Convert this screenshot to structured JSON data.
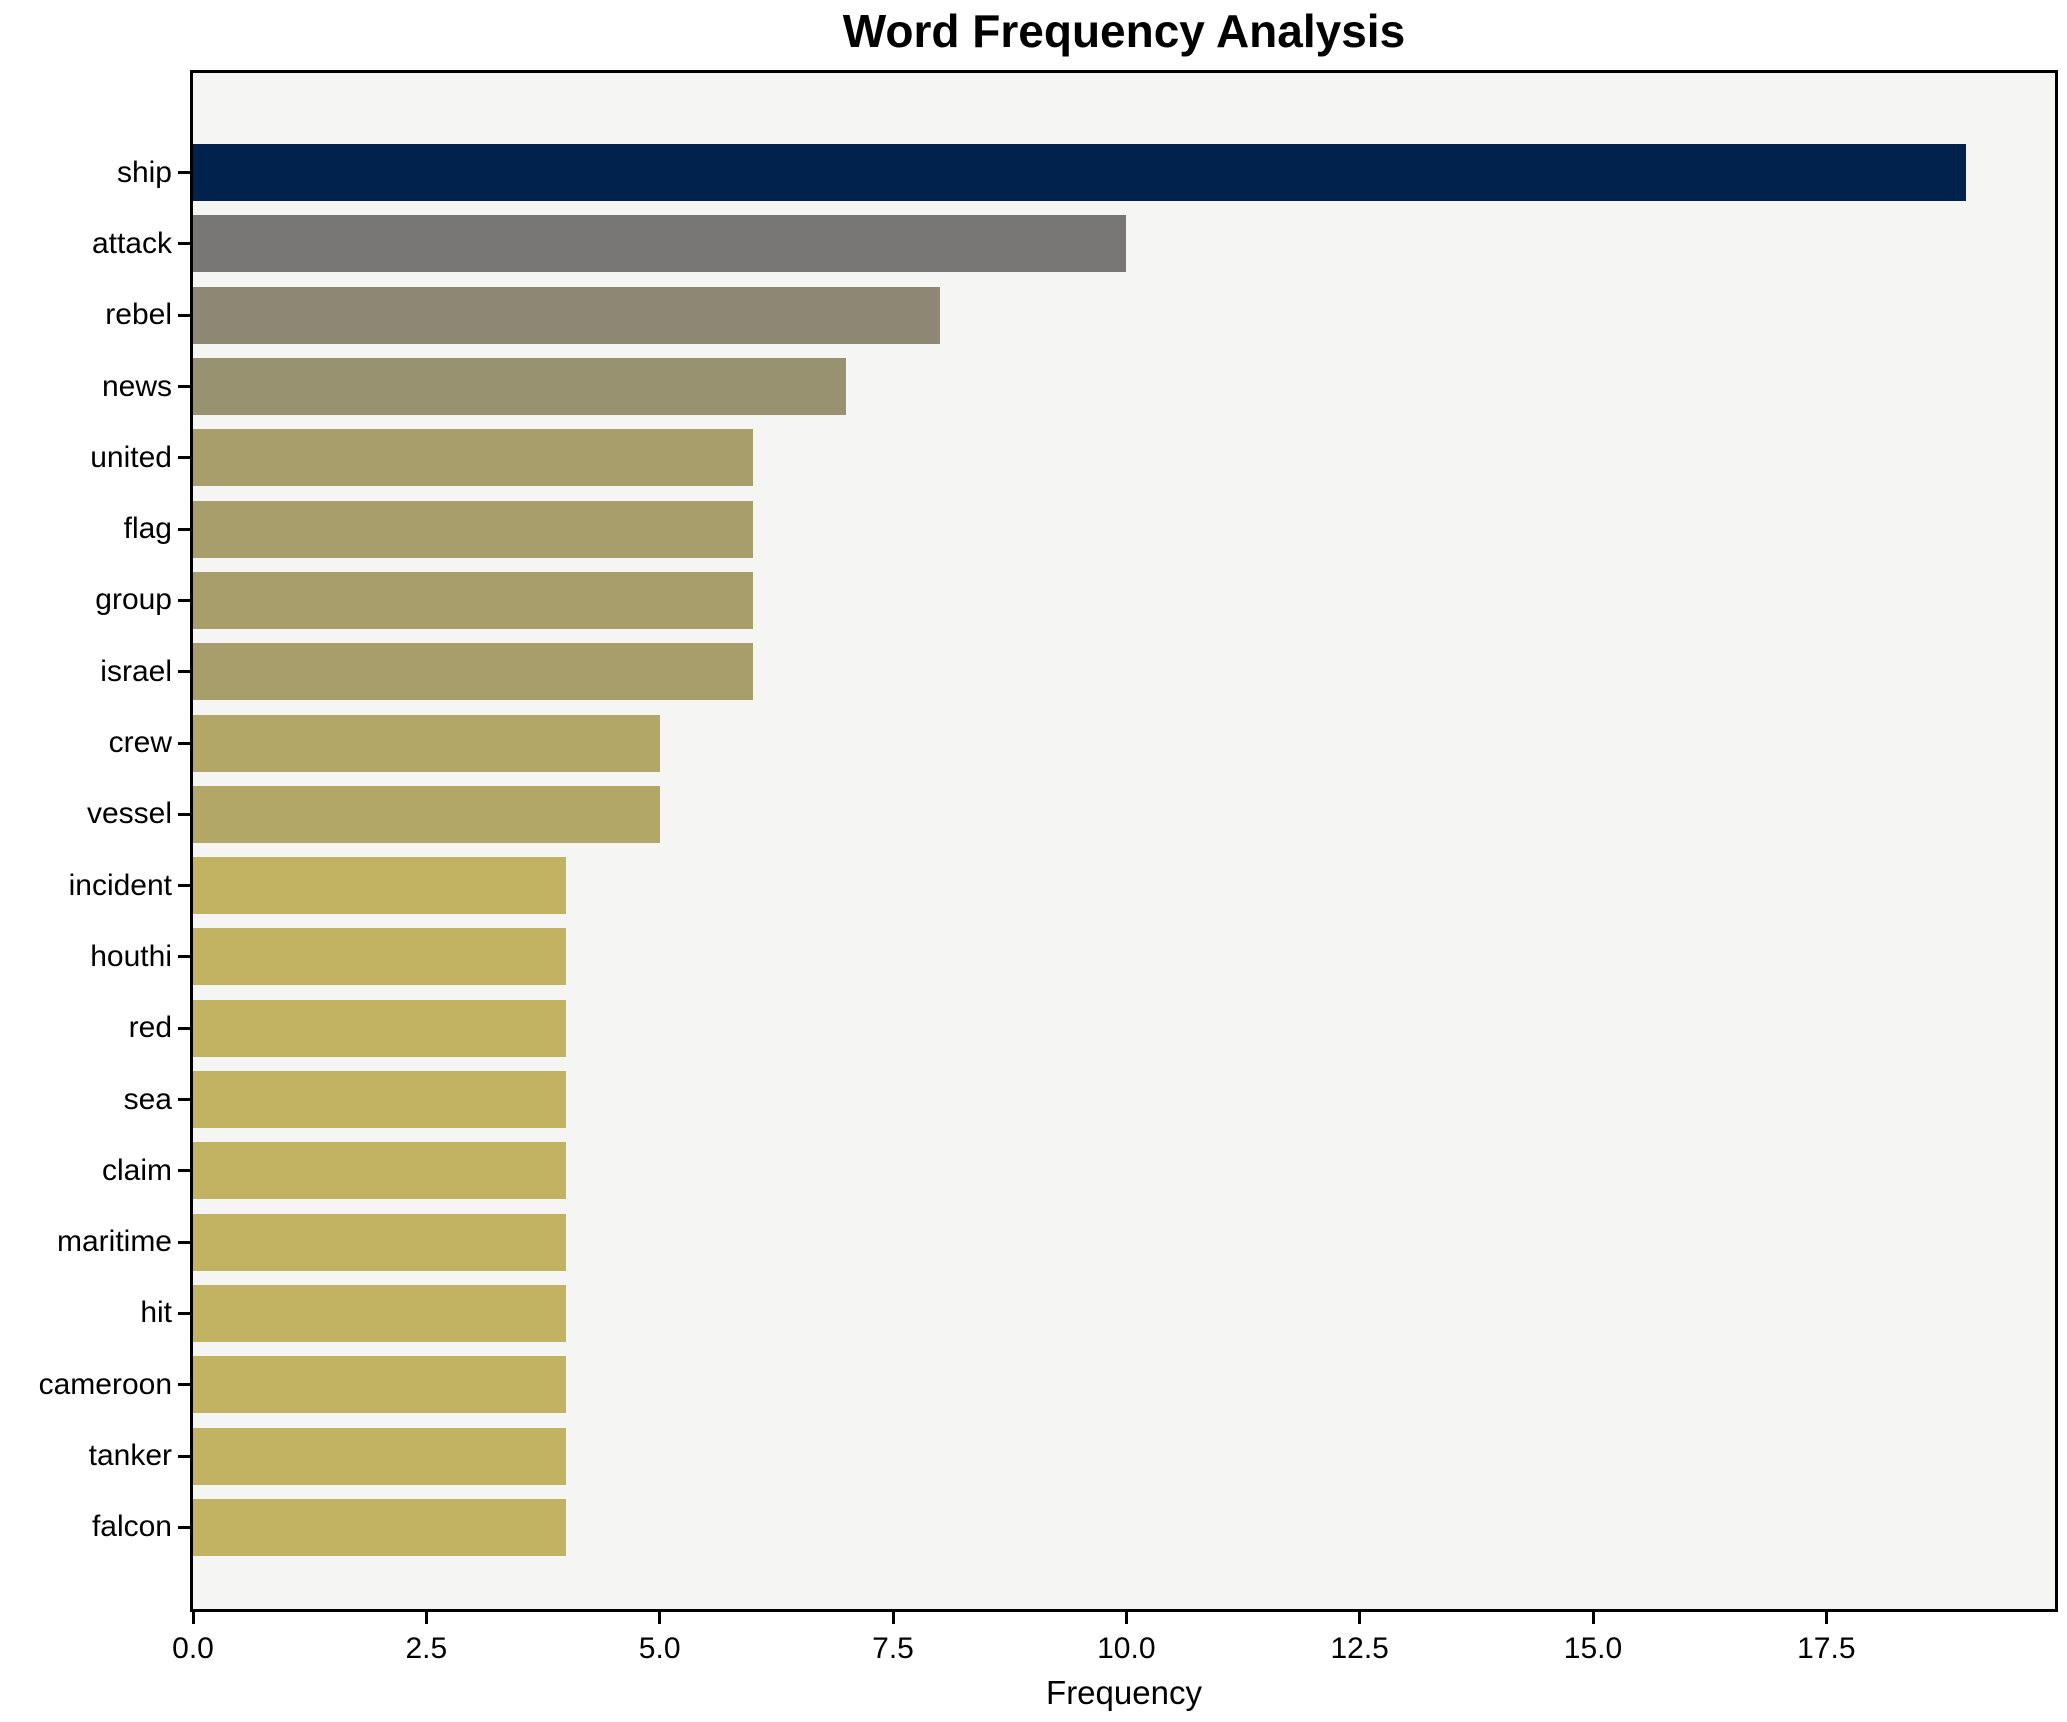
{
  "figure": {
    "background": "#ffffff",
    "plot_background": "#f5f5f3",
    "spine_color": "#000000",
    "text_color": "#000000"
  },
  "chart_data": {
    "type": "bar",
    "orientation": "horizontal",
    "title": "Word Frequency Analysis",
    "xlabel": "Frequency",
    "ylabel": "",
    "grid": false,
    "legend_position": "none",
    "xlim": [
      0,
      19.95
    ],
    "xticks": [
      0,
      2.5,
      5,
      7.5,
      10,
      12.5,
      15,
      17.5
    ],
    "categories": [
      "ship",
      "attack",
      "rebel",
      "news",
      "united",
      "flag",
      "group",
      "israel",
      "crew",
      "vessel",
      "incident",
      "houthi",
      "red",
      "sea",
      "claim",
      "maritime",
      "hit",
      "cameroon",
      "tanker",
      "falcon"
    ],
    "values": [
      19,
      10,
      8,
      7,
      6,
      6,
      6,
      6,
      5,
      5,
      4,
      4,
      4,
      4,
      4,
      4,
      4,
      4,
      4,
      4
    ],
    "bar_colors": [
      "#00224d",
      "#787775",
      "#8e8773",
      "#999270",
      "#a89e6b",
      "#a89e6b",
      "#a89e6b",
      "#a89e6b",
      "#b2a767",
      "#b2a767",
      "#c2b363",
      "#c2b363",
      "#c2b363",
      "#c2b363",
      "#c2b363",
      "#c2b363",
      "#c2b363",
      "#c2b363",
      "#c2b363",
      "#c2b363"
    ]
  }
}
